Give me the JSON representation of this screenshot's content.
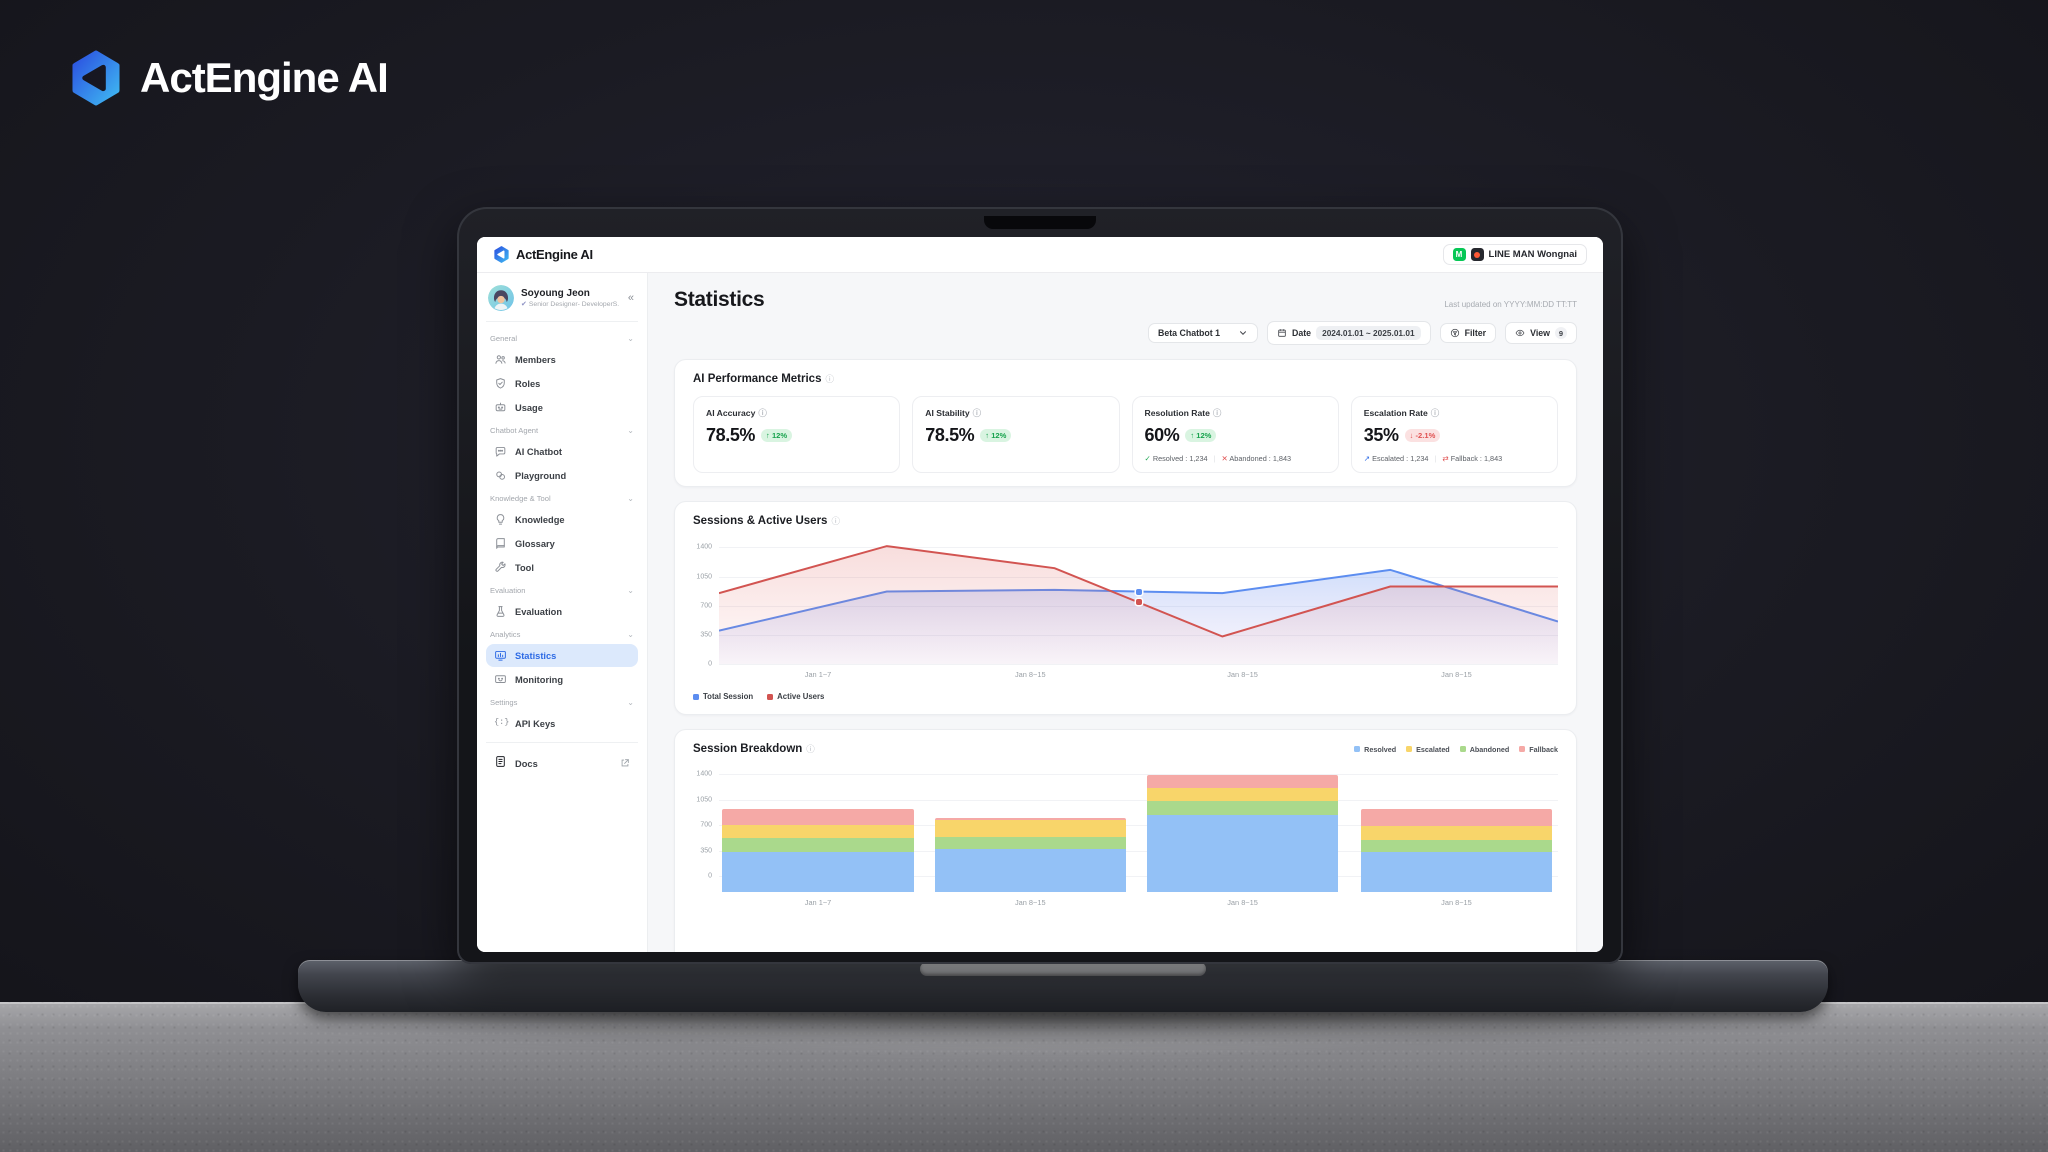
{
  "background": {
    "brand_logo_text": "ActEngine AI"
  },
  "app": {
    "topbar": {
      "logo_text": "ActEngine AI",
      "workspace": "LINE MAN Wongnai"
    },
    "sidebar": {
      "user": {
        "name": "Soyoung Jeon",
        "role": "Senior Designer- DeveloperS...",
        "collapse_icon": "«"
      },
      "sections": [
        {
          "label": "General",
          "items": [
            {
              "label": "Members",
              "icon": "users-icon"
            },
            {
              "label": "Roles",
              "icon": "shield-icon"
            },
            {
              "label": "Usage",
              "icon": "robot-icon"
            }
          ]
        },
        {
          "label": "Chatbot Agent",
          "items": [
            {
              "label": "AI Chatbot",
              "icon": "chat-icon"
            },
            {
              "label": "Playground",
              "icon": "playground-icon"
            }
          ]
        },
        {
          "label": "Knowledge & Tool",
          "items": [
            {
              "label": "Knowledge",
              "icon": "knowledge-icon"
            },
            {
              "label": "Glossary",
              "icon": "book-icon"
            },
            {
              "label": "Tool",
              "icon": "wrench-icon"
            }
          ]
        },
        {
          "label": "Evaluation",
          "items": [
            {
              "label": "Evaluation",
              "icon": "flask-icon"
            }
          ]
        },
        {
          "label": "Analytics",
          "items": [
            {
              "label": "Statistics",
              "icon": "stats-icon",
              "active": true
            },
            {
              "label": "Monitoring",
              "icon": "monitor-icon"
            }
          ]
        },
        {
          "label": "Settings",
          "items": [
            {
              "label": "API Keys",
              "icon": "api-icon"
            }
          ]
        }
      ],
      "docs_item": {
        "label": "Docs",
        "icon": "docs-icon"
      }
    },
    "main": {
      "title": "Statistics",
      "last_updated": "Last updated on YYYY:MM:DD TT:TT",
      "filters": {
        "chatbot_select": "Beta Chatbot 1",
        "date_label": "Date",
        "date_range": "2024.01.01 ~ 2025.01.01",
        "filter_label": "Filter",
        "view_label": "View",
        "view_count": "9"
      },
      "metrics_card": {
        "title": "AI Performance Metrics",
        "metrics": [
          {
            "label": "AI Accuracy",
            "value": "78.5%",
            "delta": "12%",
            "delta_dir": "up"
          },
          {
            "label": "AI Stability",
            "value": "78.5%",
            "delta": "12%",
            "delta_dir": "up"
          },
          {
            "label": "Resolution Rate",
            "value": "60%",
            "delta": "12%",
            "delta_dir": "up",
            "footers": [
              {
                "icon": "check",
                "text": "Resolved : 1,234"
              },
              {
                "icon": "cross",
                "text": "Abandoned : 1,843"
              }
            ]
          },
          {
            "label": "Escalation Rate",
            "value": "35%",
            "delta": "-2.1%",
            "delta_dir": "down",
            "footers": [
              {
                "icon": "arrow",
                "text": "Escalated : 1,234"
              },
              {
                "icon": "swap",
                "text": "Fallback : 1,843"
              }
            ]
          }
        ]
      },
      "sessions_card": {
        "title": "Sessions & Active Users"
      },
      "breakdown_card": {
        "title": "Session Breakdown"
      }
    }
  },
  "chart_data": [
    {
      "type": "line",
      "title": "Sessions & Active Users",
      "x_labels": [
        "Jan 1~7",
        "Jan 8~15",
        "Jan 8~15",
        "Jan 8~15"
      ],
      "y_ticks": [
        1400,
        1050,
        700,
        350,
        0
      ],
      "ylim": [
        0,
        1500
      ],
      "grid": true,
      "legend_position": "bottom-left",
      "series": [
        {
          "name": "Total Session",
          "color": "#5c8df0",
          "values": [
            400,
            870,
            890,
            850,
            1130,
            510
          ]
        },
        {
          "name": "Active Users",
          "color": "#d25451",
          "values": [
            850,
            1415,
            1150,
            330,
            930,
            930
          ]
        }
      ],
      "markers": [
        {
          "series": "Total Session",
          "frac": 0.5,
          "value": 870
        },
        {
          "series": "Active Users",
          "frac": 0.5,
          "value": 740
        }
      ]
    },
    {
      "type": "bar",
      "title": "Session Breakdown",
      "categories": [
        "Jan 1~7",
        "Jan 8~15",
        "Jan 8~15",
        "Jan 8~15"
      ],
      "y_ticks": [
        1400,
        1050,
        700,
        350,
        0
      ],
      "ylim": [
        -215,
        1500
      ],
      "grid": true,
      "legend_position": "top-right",
      "stack_order": [
        "Resolved",
        "Abandoned",
        "Escalated",
        "Fallback"
      ],
      "series": [
        {
          "name": "Resolved",
          "color": "#93c1f6",
          "values": [
            555,
            595,
            1055,
            545
          ]
        },
        {
          "name": "Escalated",
          "color": "#f8d56a",
          "values": [
            170,
            230,
            170,
            180
          ]
        },
        {
          "name": "Abandoned",
          "color": "#aad98c",
          "values": [
            190,
            160,
            200,
            175
          ]
        },
        {
          "name": "Fallback",
          "color": "#f5a9a6",
          "values": [
            230,
            25,
            180,
            240
          ]
        }
      ]
    }
  ]
}
